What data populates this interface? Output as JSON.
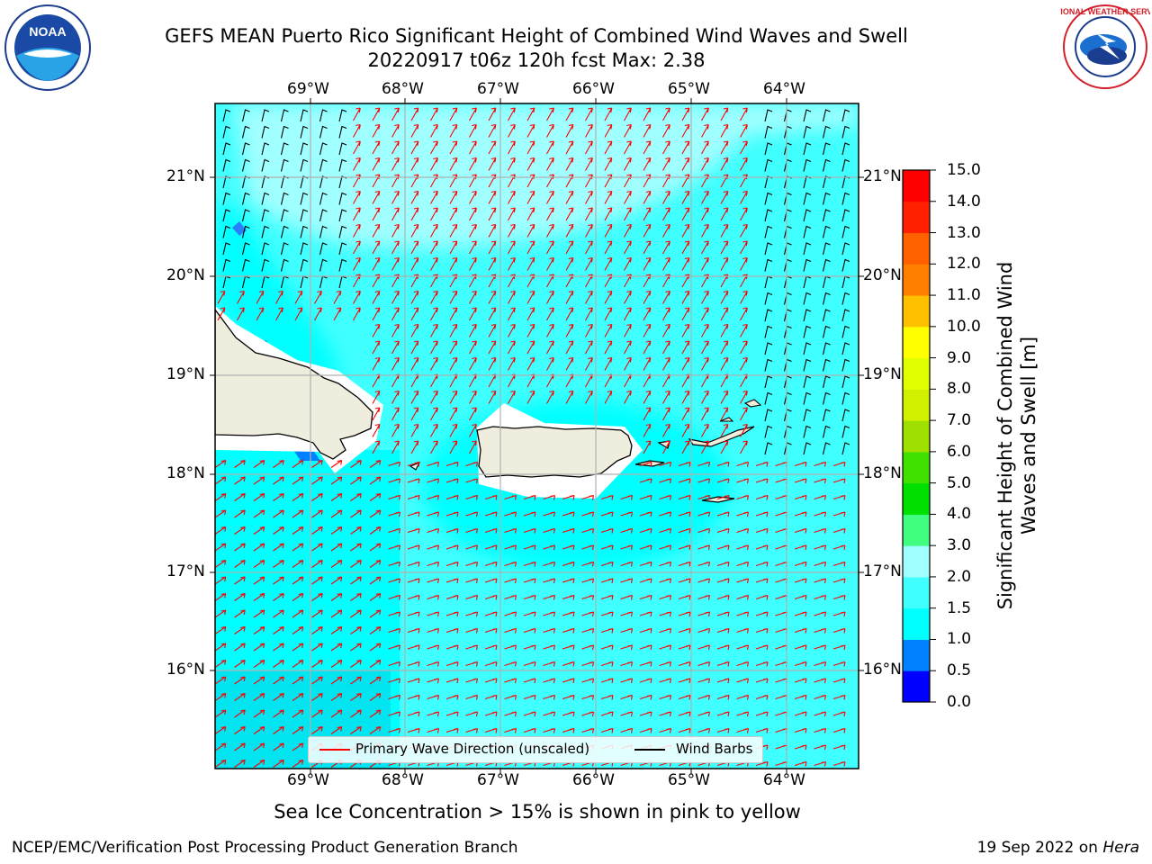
{
  "title": {
    "line1": "GEFS MEAN Puerto Rico Significant Height of Combined Wind Waves and Swell",
    "line2": "20220917 t06z 120h fcst   Max: 2.38"
  },
  "logos": {
    "left": "noaa-logo",
    "right": "national-weather-service-logo",
    "left_text": "NOAA",
    "right_text": "NATIONAL WEATHER SERVICE"
  },
  "map": {
    "lon_ticks": [
      "69°W",
      "68°W",
      "67°W",
      "66°W",
      "65°W",
      "64°W"
    ],
    "lat_ticks": [
      "21°N",
      "20°N",
      "19°N",
      "18°N",
      "17°N",
      "16°N"
    ],
    "land_color": "#efedde",
    "coast_color": "#000000"
  },
  "colorbar": {
    "title": "Significant Height of Combined Wind Waves and Swell [m]",
    "ticks": [
      "15.0",
      "14.0",
      "13.0",
      "12.0",
      "11.0",
      "10.0",
      "9.0",
      "8.0",
      "7.0",
      "6.0",
      "5.0",
      "4.0",
      "3.0",
      "2.0",
      "1.5",
      "1.0",
      "0.5",
      "0.0"
    ],
    "colors": [
      "#0000ff",
      "#0080ff",
      "#00ffff",
      "#40ffff",
      "#a0ffff",
      "#40ff80",
      "#00e000",
      "#40e000",
      "#a0e000",
      "#d0f000",
      "#e0ff00",
      "#ffff00",
      "#ffc000",
      "#ff8000",
      "#ff6000",
      "#ff2000",
      "#ff0000"
    ]
  },
  "legend": {
    "wave_label": "Primary Wave Direction (unscaled)",
    "wave_color": "#ff0000",
    "barb_label": "Wind Barbs",
    "barb_color": "#000000"
  },
  "ice_note": "Sea Ice Concentration > 15% is shown in pink to yellow",
  "footer": {
    "left": "NCEP/EMC/Verification Post Processing Product Generation Branch",
    "date": "19 Sep 2022 on ",
    "machine": "Hera"
  }
}
